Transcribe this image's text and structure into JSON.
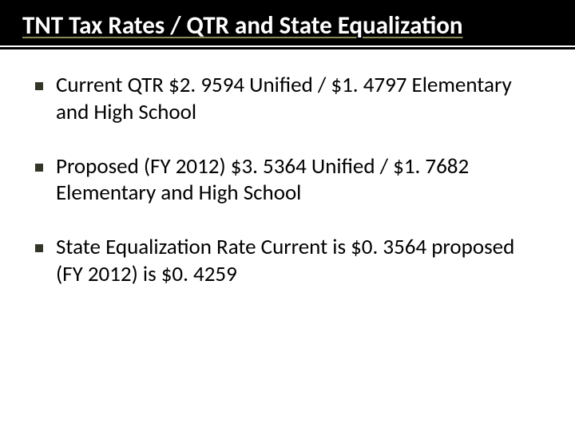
{
  "slide": {
    "title": "TNT Tax Rates / QTR and State Equalization",
    "title_color": "#ffffff",
    "title_fontsize": 31,
    "title_underline_color": "#8a8a5c",
    "header_background": "#000000",
    "divider_color": "#000000",
    "background_color": "#ffffff",
    "bullets": [
      {
        "text": "Current QTR $2. 9594 Unified / $1. 4797 Elementary and High School"
      },
      {
        "text": "Proposed (FY 2012) $3. 5364 Unified / $1. 7682 Elementary and High School"
      },
      {
        "text": "State Equalization Rate Current is $0. 3564 proposed (FY 2012) is $0. 4259"
      }
    ],
    "bullet_marker_color": "#343428",
    "bullet_text_color": "#000000",
    "bullet_fontsize": 27
  }
}
